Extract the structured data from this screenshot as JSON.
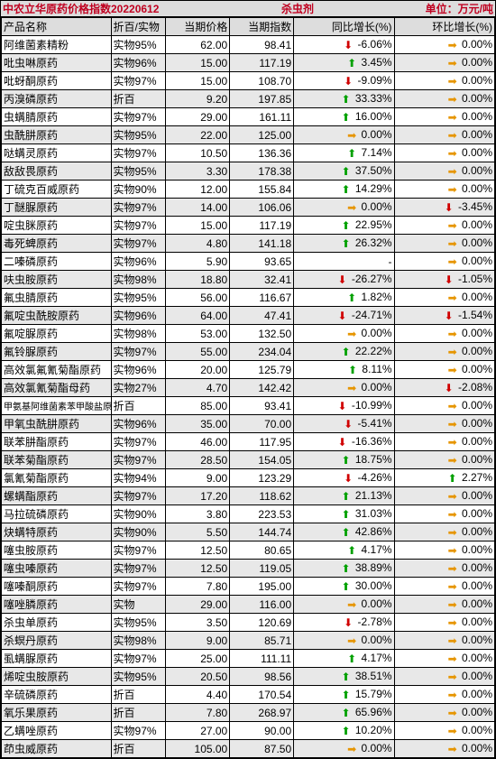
{
  "header": {
    "title": "中农立华原药价格指数20220612",
    "category": "杀虫剂",
    "unit": "单位：万元/吨"
  },
  "columns": [
    "产品名称",
    "折百/实物",
    "当期价格",
    "当期指数",
    "同比增长(%)",
    "环比增长(%)"
  ],
  "colors": {
    "header_text": "#c00020",
    "up": "#00a000",
    "down": "#d00000",
    "flat": "#e69500",
    "alt_row": "#e8e8e8",
    "border": "#000000"
  },
  "rows": [
    {
      "name": "阿维菌素精粉",
      "spec": "实物95%",
      "price": "62.00",
      "idx": "98.41",
      "yoy": "-6.06%",
      "yd": "down",
      "mom": "0.00%",
      "md": "flat"
    },
    {
      "name": "吡虫啉原药",
      "spec": "实物96%",
      "price": "15.00",
      "idx": "117.19",
      "yoy": "3.45%",
      "yd": "up",
      "mom": "0.00%",
      "md": "flat"
    },
    {
      "name": "吡蚜酮原药",
      "spec": "实物97%",
      "price": "15.00",
      "idx": "108.70",
      "yoy": "-9.09%",
      "yd": "down",
      "mom": "0.00%",
      "md": "flat"
    },
    {
      "name": "丙溴磷原药",
      "spec": "折百",
      "price": "9.20",
      "idx": "197.85",
      "yoy": "33.33%",
      "yd": "up",
      "mom": "0.00%",
      "md": "flat"
    },
    {
      "name": "虫螨腈原药",
      "spec": "实物97%",
      "price": "29.00",
      "idx": "161.11",
      "yoy": "16.00%",
      "yd": "up",
      "mom": "0.00%",
      "md": "flat"
    },
    {
      "name": "虫酰肼原药",
      "spec": "实物95%",
      "price": "22.00",
      "idx": "125.00",
      "yoy": "0.00%",
      "yd": "flat",
      "mom": "0.00%",
      "md": "flat"
    },
    {
      "name": "哒螨灵原药",
      "spec": "实物97%",
      "price": "10.50",
      "idx": "136.36",
      "yoy": "7.14%",
      "yd": "up",
      "mom": "0.00%",
      "md": "flat"
    },
    {
      "name": "敌敌畏原药",
      "spec": "实物95%",
      "price": "3.30",
      "idx": "178.38",
      "yoy": "37.50%",
      "yd": "up",
      "mom": "0.00%",
      "md": "flat"
    },
    {
      "name": "丁硫克百威原药",
      "spec": "实物90%",
      "price": "12.00",
      "idx": "155.84",
      "yoy": "14.29%",
      "yd": "up",
      "mom": "0.00%",
      "md": "flat"
    },
    {
      "name": "丁醚脲原药",
      "spec": "实物97%",
      "price": "14.00",
      "idx": "106.06",
      "yoy": "0.00%",
      "yd": "flat",
      "mom": "-3.45%",
      "md": "down"
    },
    {
      "name": "啶虫脒原药",
      "spec": "实物97%",
      "price": "15.00",
      "idx": "117.19",
      "yoy": "22.95%",
      "yd": "up",
      "mom": "0.00%",
      "md": "flat"
    },
    {
      "name": "毒死蜱原药",
      "spec": "实物97%",
      "price": "4.80",
      "idx": "141.18",
      "yoy": "26.32%",
      "yd": "up",
      "mom": "0.00%",
      "md": "flat"
    },
    {
      "name": "二嗪磷原药",
      "spec": "实物96%",
      "price": "5.90",
      "idx": "93.65",
      "yoy": "-",
      "yd": "",
      "mom": "0.00%",
      "md": "flat"
    },
    {
      "name": "呋虫胺原药",
      "spec": "实物98%",
      "price": "18.80",
      "idx": "32.41",
      "yoy": "-26.27%",
      "yd": "down",
      "mom": "-1.05%",
      "md": "down"
    },
    {
      "name": "氟虫腈原药",
      "spec": "实物95%",
      "price": "56.00",
      "idx": "116.67",
      "yoy": "1.82%",
      "yd": "up",
      "mom": "0.00%",
      "md": "flat"
    },
    {
      "name": "氟啶虫酰胺原药",
      "spec": "实物96%",
      "price": "64.00",
      "idx": "47.41",
      "yoy": "-24.71%",
      "yd": "down",
      "mom": "-1.54%",
      "md": "down"
    },
    {
      "name": "氟啶脲原药",
      "spec": "实物98%",
      "price": "53.00",
      "idx": "132.50",
      "yoy": "0.00%",
      "yd": "flat",
      "mom": "0.00%",
      "md": "flat"
    },
    {
      "name": "氟铃脲原药",
      "spec": "实物97%",
      "price": "55.00",
      "idx": "234.04",
      "yoy": "22.22%",
      "yd": "up",
      "mom": "0.00%",
      "md": "flat"
    },
    {
      "name": "高效氯氟氰菊酯原药",
      "spec": "实物96%",
      "price": "20.00",
      "idx": "125.79",
      "yoy": "8.11%",
      "yd": "up",
      "mom": "0.00%",
      "md": "flat"
    },
    {
      "name": "高效氯氰菊酯母药",
      "spec": "实物27%",
      "price": "4.70",
      "idx": "142.42",
      "yoy": "0.00%",
      "yd": "flat",
      "mom": "-2.08%",
      "md": "down"
    },
    {
      "name": "甲氨基阿维菌素苯甲酸盐原药",
      "spec": "折百",
      "price": "85.00",
      "idx": "93.41",
      "yoy": "-10.99%",
      "yd": "down",
      "mom": "0.00%",
      "md": "flat",
      "small": true
    },
    {
      "name": "甲氧虫酰肼原药",
      "spec": "实物96%",
      "price": "35.00",
      "idx": "70.00",
      "yoy": "-5.41%",
      "yd": "down",
      "mom": "0.00%",
      "md": "flat"
    },
    {
      "name": "联苯肼酯原药",
      "spec": "实物97%",
      "price": "46.00",
      "idx": "117.95",
      "yoy": "-16.36%",
      "yd": "down",
      "mom": "0.00%",
      "md": "flat"
    },
    {
      "name": "联苯菊酯原药",
      "spec": "实物97%",
      "price": "28.50",
      "idx": "154.05",
      "yoy": "18.75%",
      "yd": "up",
      "mom": "0.00%",
      "md": "flat"
    },
    {
      "name": "氯氰菊酯原药",
      "spec": "实物94%",
      "price": "9.00",
      "idx": "123.29",
      "yoy": "-4.26%",
      "yd": "down",
      "mom": "2.27%",
      "md": "up"
    },
    {
      "name": "螺螨酯原药",
      "spec": "实物97%",
      "price": "17.20",
      "idx": "118.62",
      "yoy": "21.13%",
      "yd": "up",
      "mom": "0.00%",
      "md": "flat"
    },
    {
      "name": "马拉硫磷原药",
      "spec": "实物90%",
      "price": "3.80",
      "idx": "223.53",
      "yoy": "31.03%",
      "yd": "up",
      "mom": "0.00%",
      "md": "flat"
    },
    {
      "name": "炔螨特原药",
      "spec": "实物90%",
      "price": "5.50",
      "idx": "144.74",
      "yoy": "42.86%",
      "yd": "up",
      "mom": "0.00%",
      "md": "flat"
    },
    {
      "name": "噻虫胺原药",
      "spec": "实物97%",
      "price": "12.50",
      "idx": "80.65",
      "yoy": "4.17%",
      "yd": "up",
      "mom": "0.00%",
      "md": "flat"
    },
    {
      "name": "噻虫嗪原药",
      "spec": "实物97%",
      "price": "12.50",
      "idx": "119.05",
      "yoy": "38.89%",
      "yd": "up",
      "mom": "0.00%",
      "md": "flat"
    },
    {
      "name": "噻嗪酮原药",
      "spec": "实物97%",
      "price": "7.80",
      "idx": "195.00",
      "yoy": "30.00%",
      "yd": "up",
      "mom": "0.00%",
      "md": "flat"
    },
    {
      "name": "噻唑膦原药",
      "spec": "实物",
      "price": "29.00",
      "idx": "116.00",
      "yoy": "0.00%",
      "yd": "flat",
      "mom": "0.00%",
      "md": "flat"
    },
    {
      "name": "杀虫单原药",
      "spec": "实物95%",
      "price": "3.50",
      "idx": "120.69",
      "yoy": "-2.78%",
      "yd": "down",
      "mom": "0.00%",
      "md": "flat"
    },
    {
      "name": "杀螟丹原药",
      "spec": "实物98%",
      "price": "9.00",
      "idx": "85.71",
      "yoy": "0.00%",
      "yd": "flat",
      "mom": "0.00%",
      "md": "flat"
    },
    {
      "name": "虱螨脲原药",
      "spec": "实物97%",
      "price": "25.00",
      "idx": "111.11",
      "yoy": "4.17%",
      "yd": "up",
      "mom": "0.00%",
      "md": "flat"
    },
    {
      "name": "烯啶虫胺原药",
      "spec": "实物95%",
      "price": "20.50",
      "idx": "98.56",
      "yoy": "38.51%",
      "yd": "up",
      "mom": "0.00%",
      "md": "flat"
    },
    {
      "name": "辛硫磷原药",
      "spec": "折百",
      "price": "4.40",
      "idx": "170.54",
      "yoy": "15.79%",
      "yd": "up",
      "mom": "0.00%",
      "md": "flat"
    },
    {
      "name": "氧乐果原药",
      "spec": "折百",
      "price": "7.80",
      "idx": "268.97",
      "yoy": "65.96%",
      "yd": "up",
      "mom": "0.00%",
      "md": "flat"
    },
    {
      "name": "乙螨唑原药",
      "spec": "实物97%",
      "price": "27.00",
      "idx": "90.00",
      "yoy": "10.20%",
      "yd": "up",
      "mom": "0.00%",
      "md": "flat"
    },
    {
      "name": "茚虫威原药",
      "spec": "折百",
      "price": "105.00",
      "idx": "87.50",
      "yoy": "0.00%",
      "yd": "flat",
      "mom": "0.00%",
      "md": "flat"
    }
  ]
}
